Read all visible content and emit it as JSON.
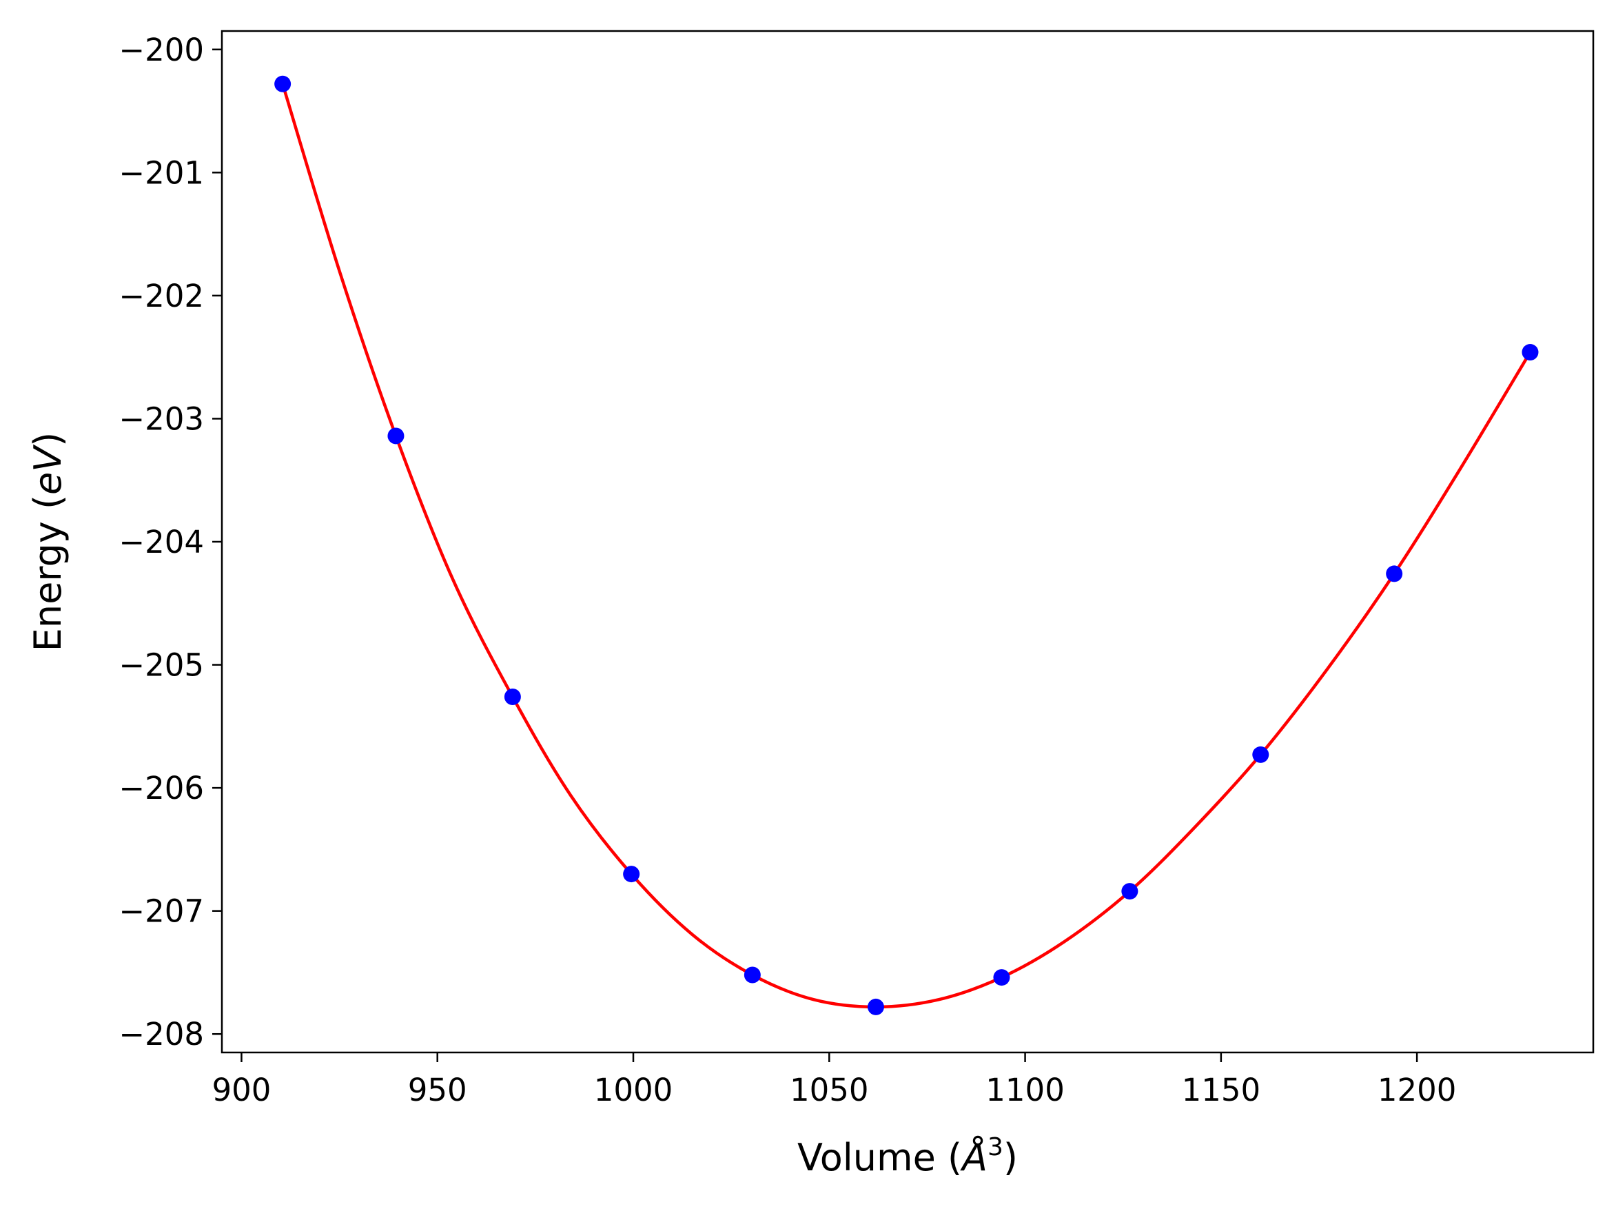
{
  "chart_data": {
    "type": "line",
    "xlabel": "Volume (Å³)",
    "ylabel": "Energy (eV)",
    "xlabel_parts": {
      "prefix": "Volume (",
      "symbol": "Å",
      "superscript": "3",
      "suffix": ")"
    },
    "ylabel_parts": {
      "prefix": "Energy (",
      "unit": "eV",
      "suffix": ")"
    },
    "xlim": [
      895,
      1245
    ],
    "ylim": [
      -208.15,
      -199.85
    ],
    "xticks": [
      900,
      950,
      1000,
      1050,
      1100,
      1150,
      1200
    ],
    "yticks": [
      -200,
      -201,
      -202,
      -203,
      -204,
      -205,
      -206,
      -207,
      -208
    ],
    "xtick_labels": [
      "900",
      "950",
      "1000",
      "1050",
      "1100",
      "1150",
      "1200"
    ],
    "ytick_labels": [
      "−200",
      "−201",
      "−202",
      "−203",
      "−204",
      "−205",
      "−206",
      "−207",
      "−208"
    ],
    "grid": false,
    "series": [
      {
        "kind": "scatter",
        "color": "#0000ff",
        "x": [
          910.5,
          939.4,
          969.2,
          999.5,
          1030.4,
          1061.9,
          1094.0,
          1126.7,
          1160.1,
          1194.2,
          1228.9
        ],
        "y": [
          -200.28,
          -203.14,
          -205.26,
          -206.7,
          -207.52,
          -207.78,
          -207.54,
          -206.84,
          -205.73,
          -204.26,
          -202.46
        ]
      },
      {
        "kind": "line",
        "color": "#ff0000",
        "x": [
          910.5,
          925,
          939.4,
          954,
          969.2,
          984,
          999.5,
          1015,
          1030.4,
          1046,
          1061.9,
          1078,
          1094.0,
          1110,
          1126.7,
          1143,
          1160.1,
          1177,
          1194.2,
          1211,
          1228.9
        ],
        "y": [
          -200.28,
          -201.8,
          -203.14,
          -204.31,
          -205.26,
          -206.06,
          -206.7,
          -207.19,
          -207.52,
          -207.72,
          -207.78,
          -207.72,
          -207.54,
          -207.25,
          -206.84,
          -206.33,
          -205.73,
          -205.04,
          -204.26,
          -203.41,
          -202.46
        ]
      }
    ]
  }
}
